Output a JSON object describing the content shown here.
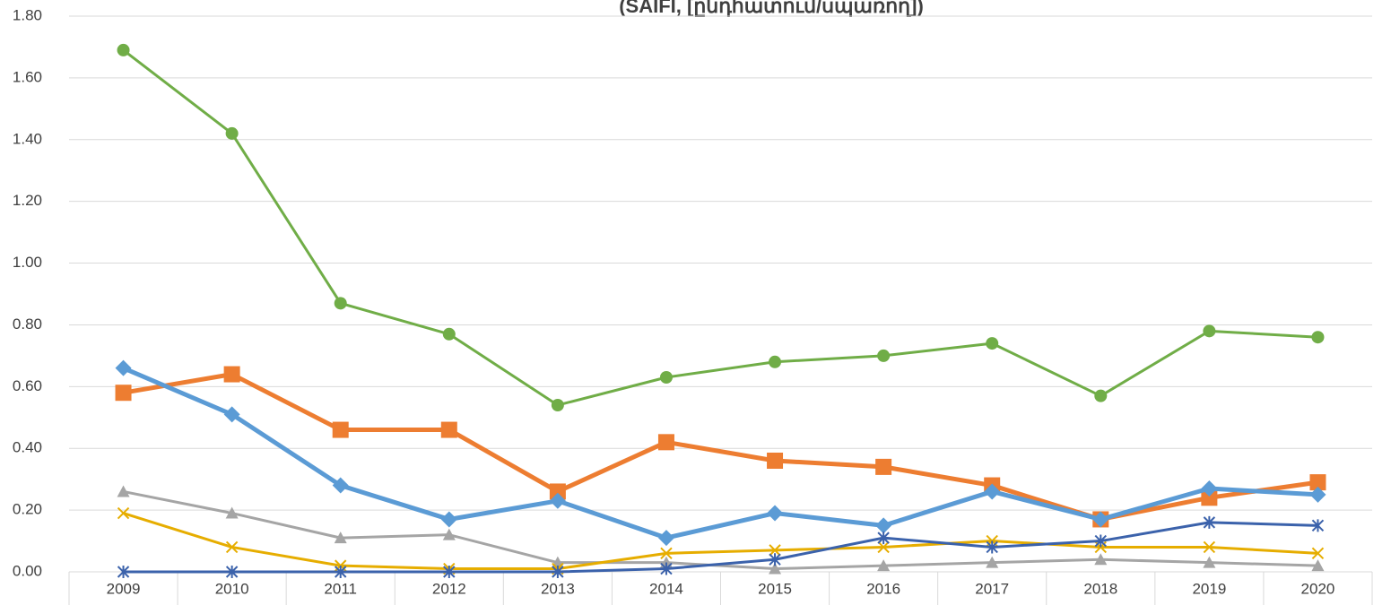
{
  "chart_data": {
    "type": "line",
    "title": "(SAIFI, [ընդհատում/սպառող])",
    "categories": [
      "2009",
      "2010",
      "2011",
      "2012",
      "2013",
      "2014",
      "2015",
      "2016",
      "2017",
      "2018",
      "2019",
      "2020"
    ],
    "series": [
      {
        "color": "#70ad47",
        "marker": "circle",
        "width": 3,
        "values": [
          1.69,
          1.42,
          0.87,
          0.77,
          0.54,
          0.63,
          0.68,
          0.7,
          0.74,
          0.57,
          0.78,
          0.76
        ]
      },
      {
        "color": "#ed7d31",
        "marker": "square",
        "width": 5,
        "values": [
          0.58,
          0.64,
          0.46,
          0.46,
          0.26,
          0.42,
          0.36,
          0.34,
          0.28,
          0.17,
          0.24,
          0.29
        ]
      },
      {
        "color": "#5b9bd5",
        "marker": "diamond",
        "width": 5,
        "values": [
          0.66,
          0.51,
          0.28,
          0.17,
          0.23,
          0.11,
          0.19,
          0.15,
          0.26,
          0.17,
          0.27,
          0.25
        ]
      },
      {
        "color": "#a5a5a5",
        "marker": "triangle",
        "width": 3,
        "values": [
          0.26,
          0.19,
          0.11,
          0.12,
          0.03,
          0.03,
          0.01,
          0.02,
          0.03,
          0.04,
          0.03,
          0.02
        ]
      },
      {
        "color": "#e6ad00",
        "marker": "x",
        "width": 3,
        "values": [
          0.19,
          0.08,
          0.02,
          0.01,
          0.01,
          0.06,
          0.07,
          0.08,
          0.1,
          0.08,
          0.08,
          0.06
        ]
      },
      {
        "color": "#3b62ab",
        "marker": "star",
        "width": 3,
        "values": [
          0,
          0,
          0,
          0,
          0,
          0.01,
          0.04,
          0.11,
          0.08,
          0.1,
          0.16,
          0.15
        ]
      }
    ],
    "ylim": [
      0,
      1.8
    ],
    "yticks": [
      {
        "value": 0,
        "label": "0.00"
      },
      {
        "value": 0.2,
        "label": "0.20"
      },
      {
        "value": 0.4,
        "label": "0.40"
      },
      {
        "value": 0.6,
        "label": "0.60"
      },
      {
        "value": 0.8,
        "label": "0.80"
      },
      {
        "value": 1,
        "label": "1.00"
      },
      {
        "value": 1.2,
        "label": "1.20"
      },
      {
        "value": 1.4,
        "label": "1.40"
      },
      {
        "value": 1.6,
        "label": "1.60"
      },
      {
        "value": 1.8,
        "label": "1.80"
      }
    ],
    "grid": true
  }
}
